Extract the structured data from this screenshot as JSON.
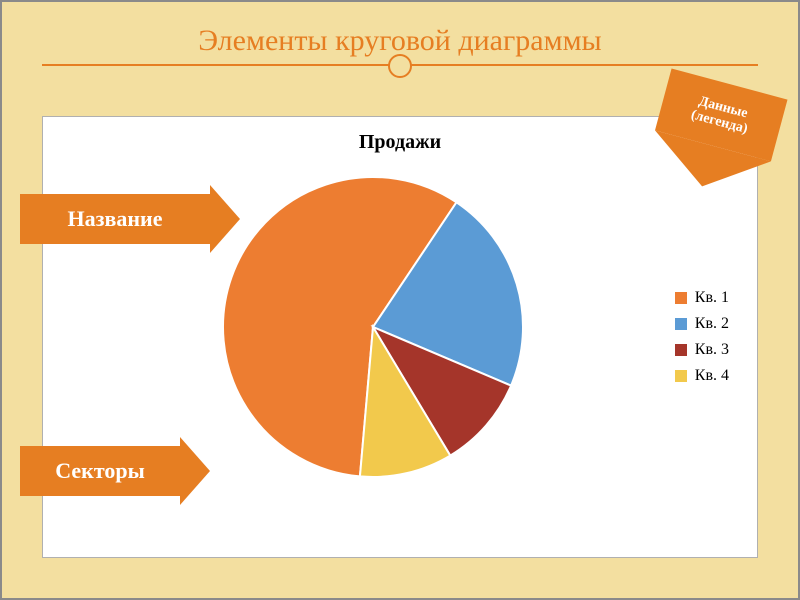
{
  "slide": {
    "title": "Элементы  круговой диаграммы",
    "title_color": "#e67e22",
    "title_fontsize": 30,
    "background_color": "#f3dfa0",
    "panel_background": "#ffffff"
  },
  "labels": {
    "title_label": "Название",
    "sectors_label": "Секторы",
    "data_label_line1": "Данные",
    "data_label_line2": "(легенда)",
    "box_color": "#e67e22",
    "box_text_color": "#ffffff"
  },
  "chart": {
    "type": "pie",
    "title": "Продажи",
    "title_fontsize": 20,
    "title_weight": "bold",
    "diameter": 300,
    "series": [
      {
        "name": "Кв. 1",
        "value": 58,
        "color": "#ed7d31"
      },
      {
        "name": "Кв. 2",
        "value": 22,
        "color": "#5b9bd5"
      },
      {
        "name": "Кв. 3",
        "value": 10,
        "color": "#a5352a"
      },
      {
        "name": "Кв. 4",
        "value": 10,
        "color": "#f2c94c"
      }
    ],
    "slice_separator_color": "#ffffff",
    "slice_separator_width": 2,
    "start_angle_deg": 95,
    "direction": "clockwise"
  },
  "legend": {
    "position": "right",
    "fontsize": 16,
    "swatch_size": 12,
    "items": [
      {
        "label": "Кв. 1",
        "color": "#ed7d31"
      },
      {
        "label": "Кв. 2",
        "color": "#5b9bd5"
      },
      {
        "label": "Кв. 3",
        "color": "#a5352a"
      },
      {
        "label": "Кв. 4",
        "color": "#f2c94c"
      }
    ]
  }
}
